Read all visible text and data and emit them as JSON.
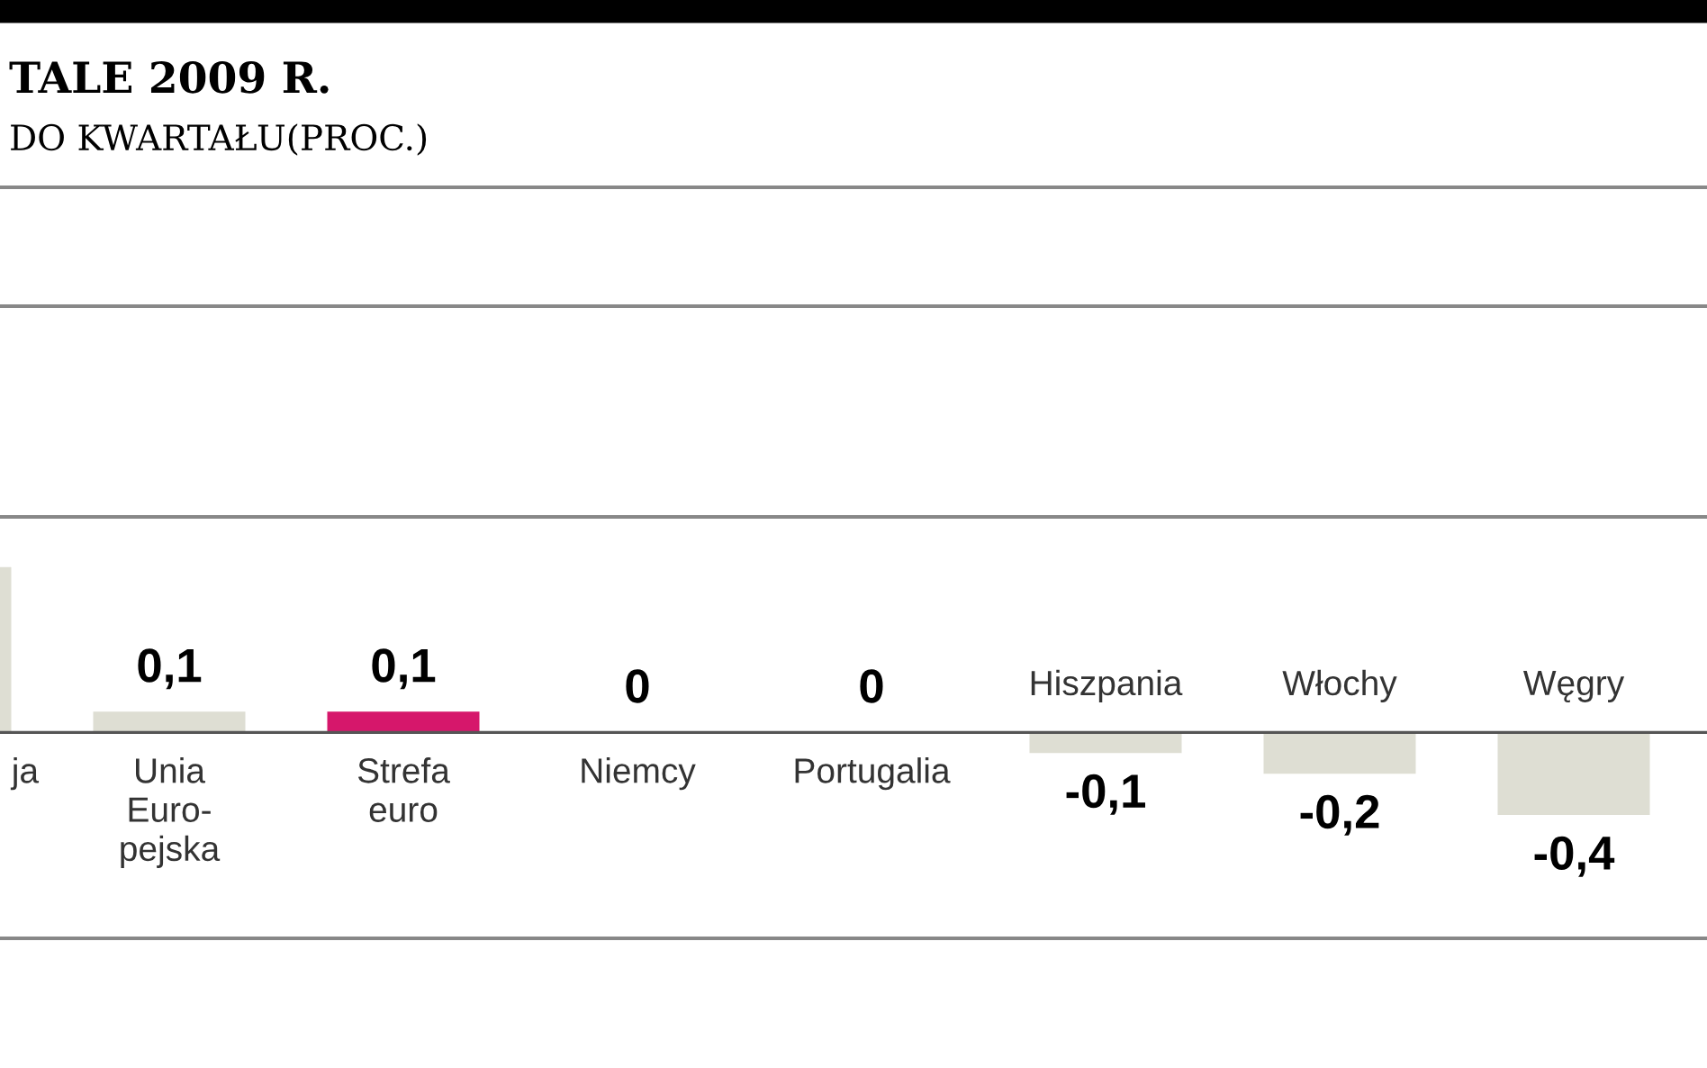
{
  "chart_data": {
    "type": "bar",
    "title": "TALE 2009 R.",
    "subtitle": "DO KWARTAŁU(PROC.)",
    "categories": [
      "ja",
      "Unia\nEuro-\npejska",
      "Strefa\neuro",
      "Niemcy",
      "Portugalia",
      "Hiszpania",
      "Włochy",
      "Węgry"
    ],
    "values": [
      0.8,
      0.1,
      0.1,
      0,
      0,
      -0.1,
      -0.2,
      -0.4
    ],
    "colors": [
      "#deded3",
      "#deded3",
      "#d6176b",
      "#deded3",
      "#deded3",
      "#deded3",
      "#deded3",
      "#deded3"
    ],
    "value_labels": [
      null,
      "0,1",
      "0,1",
      "0",
      "0",
      "-0,1",
      "-0,2",
      "-0,4"
    ],
    "legend": false
  }
}
